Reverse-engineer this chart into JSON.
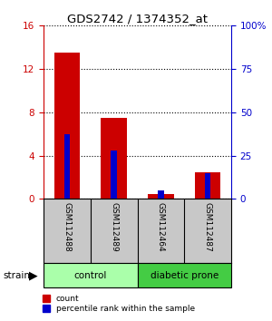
{
  "title": "GDS2742 / 1374352_at",
  "samples": [
    "GSM112488",
    "GSM112489",
    "GSM112464",
    "GSM112487"
  ],
  "count_values": [
    13.5,
    7.5,
    0.5,
    2.5
  ],
  "percentile_values": [
    37.5,
    28.0,
    5.0,
    15.0
  ],
  "ylim_left": [
    0,
    16
  ],
  "ylim_right": [
    0,
    100
  ],
  "yticks_left": [
    0,
    4,
    8,
    12,
    16
  ],
  "yticks_right": [
    0,
    25,
    50,
    75,
    100
  ],
  "ytick_labels_right": [
    "0",
    "25",
    "50",
    "75",
    "100%"
  ],
  "groups": [
    {
      "label": "control",
      "indices": [
        0,
        1
      ],
      "color": "#aaffaa"
    },
    {
      "label": "diabetic prone",
      "indices": [
        2,
        3
      ],
      "color": "#44cc44"
    }
  ],
  "red_color": "#cc0000",
  "blue_color": "#0000cc",
  "label_area_color": "#c8c8c8",
  "left_tick_color": "#cc0000",
  "right_tick_color": "#0000cc",
  "legend_count_label": "count",
  "legend_percentile_label": "percentile rank within the sample",
  "strain_label": "strain"
}
